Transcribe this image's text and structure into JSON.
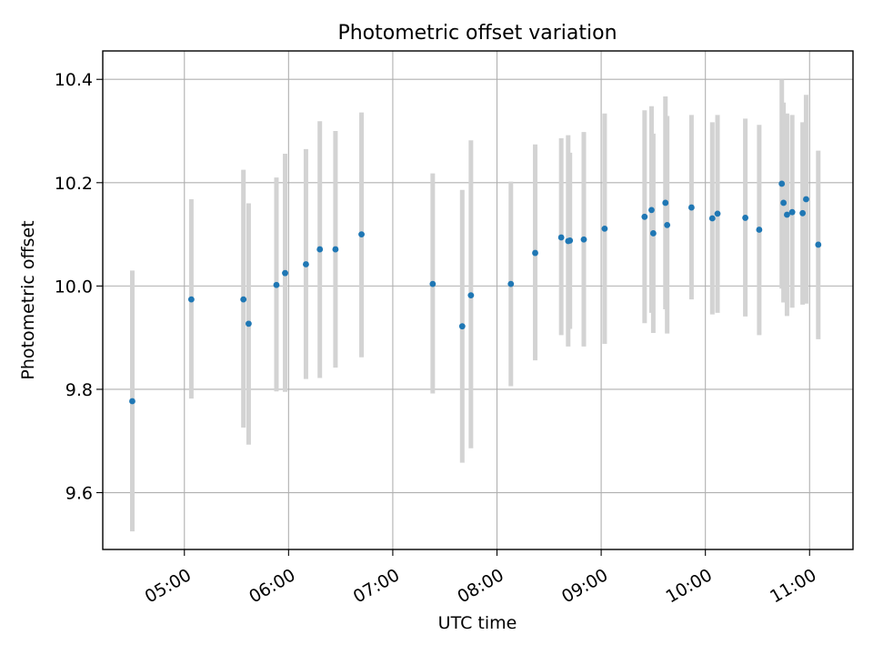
{
  "chart_data": {
    "type": "scatter",
    "title": "Photometric offset variation",
    "xlabel": "UTC time",
    "ylabel": "Photometric offset",
    "x_axis_type": "time",
    "xlim": [
      "04:13",
      "11:25"
    ],
    "ylim": [
      9.49,
      10.455
    ],
    "x_ticks": [
      "05:00",
      "06:00",
      "07:00",
      "08:00",
      "09:00",
      "10:00",
      "11:00"
    ],
    "y_ticks": [
      "9.6",
      "9.8",
      "10.0",
      "10.2",
      "10.4"
    ],
    "grid": true,
    "legend": "none",
    "marker_color": "#1f77b4",
    "errorbar_color": "#d3d3d3",
    "series": [
      {
        "points": [
          {
            "x": "04:30",
            "y": 9.777,
            "lo": 9.525,
            "hi": 10.03
          },
          {
            "x": "05:04",
            "y": 9.974,
            "lo": 9.782,
            "hi": 10.168
          },
          {
            "x": "05:34",
            "y": 9.974,
            "lo": 9.726,
            "hi": 10.225
          },
          {
            "x": "05:37",
            "y": 9.927,
            "lo": 9.693,
            "hi": 10.16
          },
          {
            "x": "05:53",
            "y": 10.002,
            "lo": 9.796,
            "hi": 10.21
          },
          {
            "x": "05:58",
            "y": 10.025,
            "lo": 9.795,
            "hi": 10.256
          },
          {
            "x": "06:10",
            "y": 10.042,
            "lo": 9.82,
            "hi": 10.265
          },
          {
            "x": "06:18",
            "y": 10.071,
            "lo": 9.822,
            "hi": 10.319
          },
          {
            "x": "06:27",
            "y": 10.071,
            "lo": 9.842,
            "hi": 10.3
          },
          {
            "x": "06:42",
            "y": 10.1,
            "lo": 9.862,
            "hi": 10.336
          },
          {
            "x": "07:23",
            "y": 10.004,
            "lo": 9.792,
            "hi": 10.218
          },
          {
            "x": "07:40",
            "y": 9.922,
            "lo": 9.658,
            "hi": 10.186
          },
          {
            "x": "07:45",
            "y": 9.982,
            "lo": 9.686,
            "hi": 10.282
          },
          {
            "x": "08:08",
            "y": 10.004,
            "lo": 9.806,
            "hi": 10.202
          },
          {
            "x": "08:22",
            "y": 10.064,
            "lo": 9.856,
            "hi": 10.274
          },
          {
            "x": "08:37",
            "y": 10.094,
            "lo": 9.905,
            "hi": 10.286
          },
          {
            "x": "08:41",
            "y": 10.087,
            "lo": 9.883,
            "hi": 10.292
          },
          {
            "x": "08:42",
            "y": 10.088,
            "lo": 9.917,
            "hi": 10.258
          },
          {
            "x": "08:50",
            "y": 10.09,
            "lo": 9.883,
            "hi": 10.298
          },
          {
            "x": "09:02",
            "y": 10.111,
            "lo": 9.888,
            "hi": 10.334
          },
          {
            "x": "09:25",
            "y": 10.134,
            "lo": 9.928,
            "hi": 10.34
          },
          {
            "x": "09:29",
            "y": 10.147,
            "lo": 9.948,
            "hi": 10.348
          },
          {
            "x": "09:30",
            "y": 10.102,
            "lo": 9.909,
            "hi": 10.295
          },
          {
            "x": "09:37",
            "y": 10.161,
            "lo": 9.955,
            "hi": 10.367
          },
          {
            "x": "09:38",
            "y": 10.118,
            "lo": 9.908,
            "hi": 10.329
          },
          {
            "x": "09:52",
            "y": 10.152,
            "lo": 9.974,
            "hi": 10.331
          },
          {
            "x": "10:04",
            "y": 10.131,
            "lo": 9.945,
            "hi": 10.317
          },
          {
            "x": "10:07",
            "y": 10.14,
            "lo": 9.948,
            "hi": 10.331
          },
          {
            "x": "10:23",
            "y": 10.132,
            "lo": 9.941,
            "hi": 10.324
          },
          {
            "x": "10:31",
            "y": 10.109,
            "lo": 9.905,
            "hi": 10.312
          },
          {
            "x": "10:44",
            "y": 10.198,
            "lo": 9.995,
            "hi": 10.4
          },
          {
            "x": "10:45",
            "y": 10.161,
            "lo": 9.968,
            "hi": 10.355
          },
          {
            "x": "10:47",
            "y": 10.138,
            "lo": 9.942,
            "hi": 10.334
          },
          {
            "x": "10:50",
            "y": 10.143,
            "lo": 9.958,
            "hi": 10.331
          },
          {
            "x": "10:56",
            "y": 10.141,
            "lo": 9.964,
            "hi": 10.317
          },
          {
            "x": "10:58",
            "y": 10.168,
            "lo": 9.966,
            "hi": 10.37
          },
          {
            "x": "11:05",
            "y": 10.08,
            "lo": 9.897,
            "hi": 10.262
          }
        ]
      }
    ]
  }
}
